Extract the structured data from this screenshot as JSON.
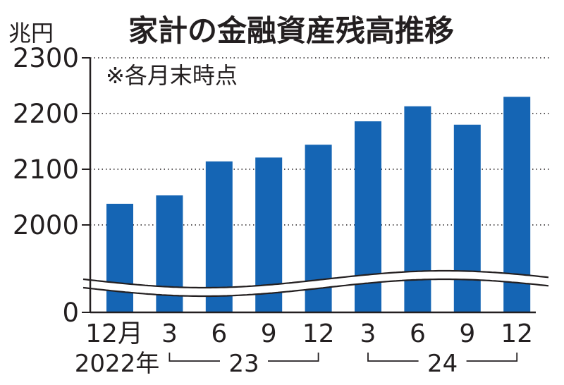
{
  "chart_data": {
    "type": "bar",
    "title": "家計の金融資産残高推移",
    "unit_label": "兆円",
    "note": "※各月末時点",
    "categories": [
      "2022-12",
      "2023-03",
      "2023-06",
      "2023-09",
      "2023-12",
      "2024-03",
      "2024-06",
      "2024-09",
      "2024-12"
    ],
    "tick_labels": [
      "12月",
      "3",
      "6",
      "9",
      "12",
      "3",
      "6",
      "9",
      "12"
    ],
    "values": [
      2038,
      2053,
      2114,
      2121,
      2144,
      2186,
      2213,
      2180,
      2230
    ],
    "ylim": [
      1930,
      2300
    ],
    "y_axis_break": true,
    "y_ticks": [
      {
        "label": "2300",
        "value": 2300
      },
      {
        "label": "2200",
        "value": 2200
      },
      {
        "label": "2100",
        "value": 2100
      },
      {
        "label": "2000",
        "value": 2000
      },
      {
        "label": "0",
        "value": 0
      }
    ],
    "year_labels": [
      {
        "label": "2022年",
        "first": 0,
        "last": 0
      },
      {
        "label": "23",
        "first": 1,
        "last": 4
      },
      {
        "label": "24",
        "first": 5,
        "last": 8
      }
    ],
    "grid": "dotted",
    "bar_color": "#1565b4"
  }
}
